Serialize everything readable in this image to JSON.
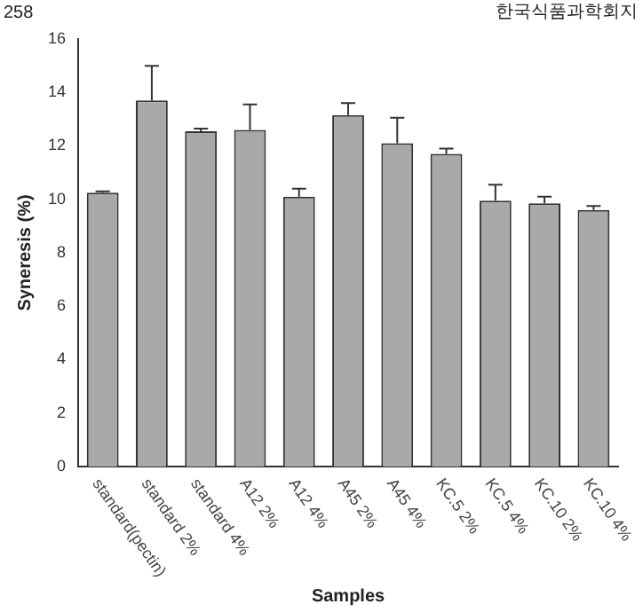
{
  "chart_data": {
    "type": "bar",
    "xlabel": "Samples",
    "ylabel": "Syneresis (%)",
    "annotations": [
      "258",
      "한국식품과학회지"
    ],
    "categories": [
      "standard(pectin)",
      "standard 2%",
      "standard 4%",
      "A12 2%",
      "A12 4%",
      "A45 2%",
      "A45 4%",
      "KC.5 2%",
      "KC.5 4%",
      "KC.10 2%",
      "KC.10 4%"
    ],
    "values": [
      10.25,
      13.7,
      12.55,
      12.6,
      10.1,
      13.15,
      12.1,
      11.7,
      9.95,
      9.85,
      9.6
    ],
    "errors": [
      [
        10.25,
        10.3
      ],
      [
        13.7,
        15.0
      ],
      [
        12.55,
        12.65
      ],
      [
        12.6,
        13.55
      ],
      [
        10.1,
        10.4
      ],
      [
        13.15,
        13.6
      ],
      [
        12.1,
        13.05
      ],
      [
        11.7,
        11.9
      ],
      [
        9.95,
        10.55
      ],
      [
        9.85,
        10.1
      ],
      [
        9.6,
        9.75
      ]
    ],
    "color": "#a9a9a9",
    "ylim": [
      0,
      16
    ],
    "yticks": [
      0,
      2,
      4,
      6,
      8,
      10,
      12,
      14,
      16
    ],
    "grid": false,
    "legend": false
  }
}
